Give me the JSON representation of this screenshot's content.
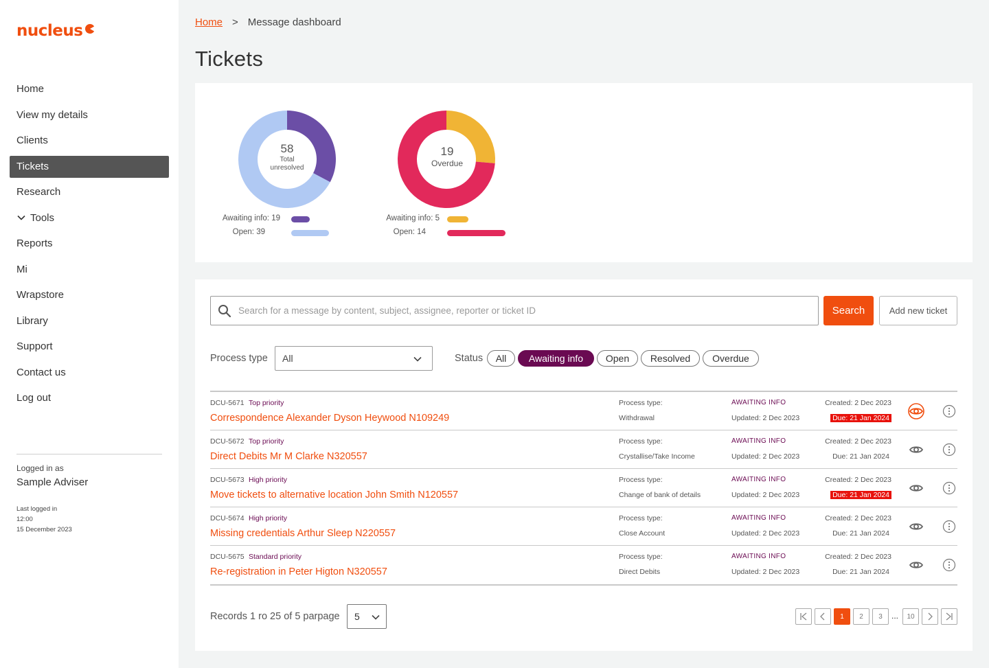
{
  "brand": {
    "name": "nucleus",
    "color": "#f04e0f"
  },
  "sidebar": {
    "items": [
      {
        "label": "Home"
      },
      {
        "label": "View my details"
      },
      {
        "label": "Clients"
      },
      {
        "label": "Tickets",
        "active": true
      },
      {
        "label": "Research"
      },
      {
        "label": "Tools",
        "icon": "chevron-down-icon"
      },
      {
        "label": "Reports"
      },
      {
        "label": "Mi"
      },
      {
        "label": "Wrapstore"
      },
      {
        "label": "Library"
      },
      {
        "label": "Support"
      },
      {
        "label": "Contact us"
      },
      {
        "label": "Log out"
      }
    ],
    "logged_label": "Logged in as",
    "user": "Sample Adviser",
    "last_logged_label": "Last logged in",
    "last_logged_time": "12:00",
    "last_logged_date": "15 December 2023"
  },
  "breadcrumb": {
    "home": "Home",
    "separator": ">",
    "current": "Message dashboard"
  },
  "page_title": "Tickets",
  "chart_data": [
    {
      "type": "pie",
      "donut": true,
      "center_value": "58",
      "center_label_1": "Total",
      "center_label_2": "unresolved",
      "categories": [
        "Awaiting info",
        "Open"
      ],
      "values": [
        19,
        39
      ],
      "colors": [
        "#6b4ea6",
        "#b0c9f3"
      ],
      "legend_labels": [
        "Awaiting info: 19",
        "Open: 39"
      ]
    },
    {
      "type": "pie",
      "donut": true,
      "center_value": "19",
      "center_label_1": "Overdue",
      "categories": [
        "Awaiting info",
        "Open"
      ],
      "values": [
        5,
        14
      ],
      "colors": [
        "#f0b435",
        "#e2295b"
      ],
      "legend_labels": [
        "Awaiting info: 5",
        "Open: 14"
      ]
    }
  ],
  "search": {
    "placeholder": "Search for a message by content, subject, assignee, reporter or ticket ID",
    "button": "Search",
    "add_button": "Add new ticket"
  },
  "filters": {
    "process_label": "Process type",
    "process_value": "All",
    "status_label": "Status",
    "status_options": [
      "All",
      "Awaiting info",
      "Open",
      "Resolved",
      "Overdue"
    ],
    "status_active": "Awaiting info"
  },
  "tickets": [
    {
      "id": "DCU-5671",
      "priority": "Top priority",
      "title": "Correspondence Alexander Dyson Heywood N109249",
      "process_label": "Process type:",
      "process": "Withdrawal",
      "status": "AWAITING INFO",
      "updated": "Updated: 2 Dec 2023",
      "created": "Created: 2 Dec 2023",
      "due": "Due: 21 Jan 2024",
      "overdue": true,
      "viewed": true
    },
    {
      "id": "DCU-5672",
      "priority": "Top priority",
      "title": "Direct Debits Mr M Clarke N320557",
      "process_label": "Process type:",
      "process": "Crystallise/Take Income",
      "status": "AWAITING INFO",
      "updated": "Updated: 2 Dec 2023",
      "created": "Created: 2 Dec 2023",
      "due": "Due: 21 Jan 2024",
      "overdue": false,
      "viewed": false
    },
    {
      "id": "DCU-5673",
      "priority": "High priority",
      "title": "Move tickets to alternative location John Smith N120557",
      "process_label": "Process type:",
      "process": "Change of bank of details",
      "status": "AWAITING INFO",
      "updated": "Updated: 2 Dec 2023",
      "created": "Created: 2 Dec 2023",
      "due": "Due: 21 Jan 2024",
      "overdue": true,
      "viewed": false
    },
    {
      "id": "DCU-5674",
      "priority": "High priority",
      "title": "Missing credentials Arthur Sleep N220557",
      "process_label": "Process type:",
      "process": "Close Account",
      "status": "AWAITING INFO",
      "updated": "Updated: 2 Dec 2023",
      "created": "Created: 2 Dec 2023",
      "due": "Due: 21 Jan 2024",
      "overdue": false,
      "viewed": false
    },
    {
      "id": "DCU-5675",
      "priority": "Standard priority",
      "title": "Re-registration in Peter Higton N320557",
      "process_label": "Process type:",
      "process": "Direct Debits",
      "status": "AWAITING INFO",
      "updated": "Updated: 2 Dec 2023",
      "created": "Created: 2 Dec 2023",
      "due": "Due: 21 Jan 2024",
      "overdue": false,
      "viewed": false
    }
  ],
  "pagination": {
    "records": "Records 1 ro 25 of 5 parpage",
    "per_page": "5",
    "pages": [
      "1",
      "2",
      "3"
    ],
    "dots": "...",
    "last_page": "10",
    "current": "1"
  },
  "colors": {
    "accent": "#f04e0f",
    "purple": "#6a0a52",
    "overdue": "#e8120c"
  }
}
